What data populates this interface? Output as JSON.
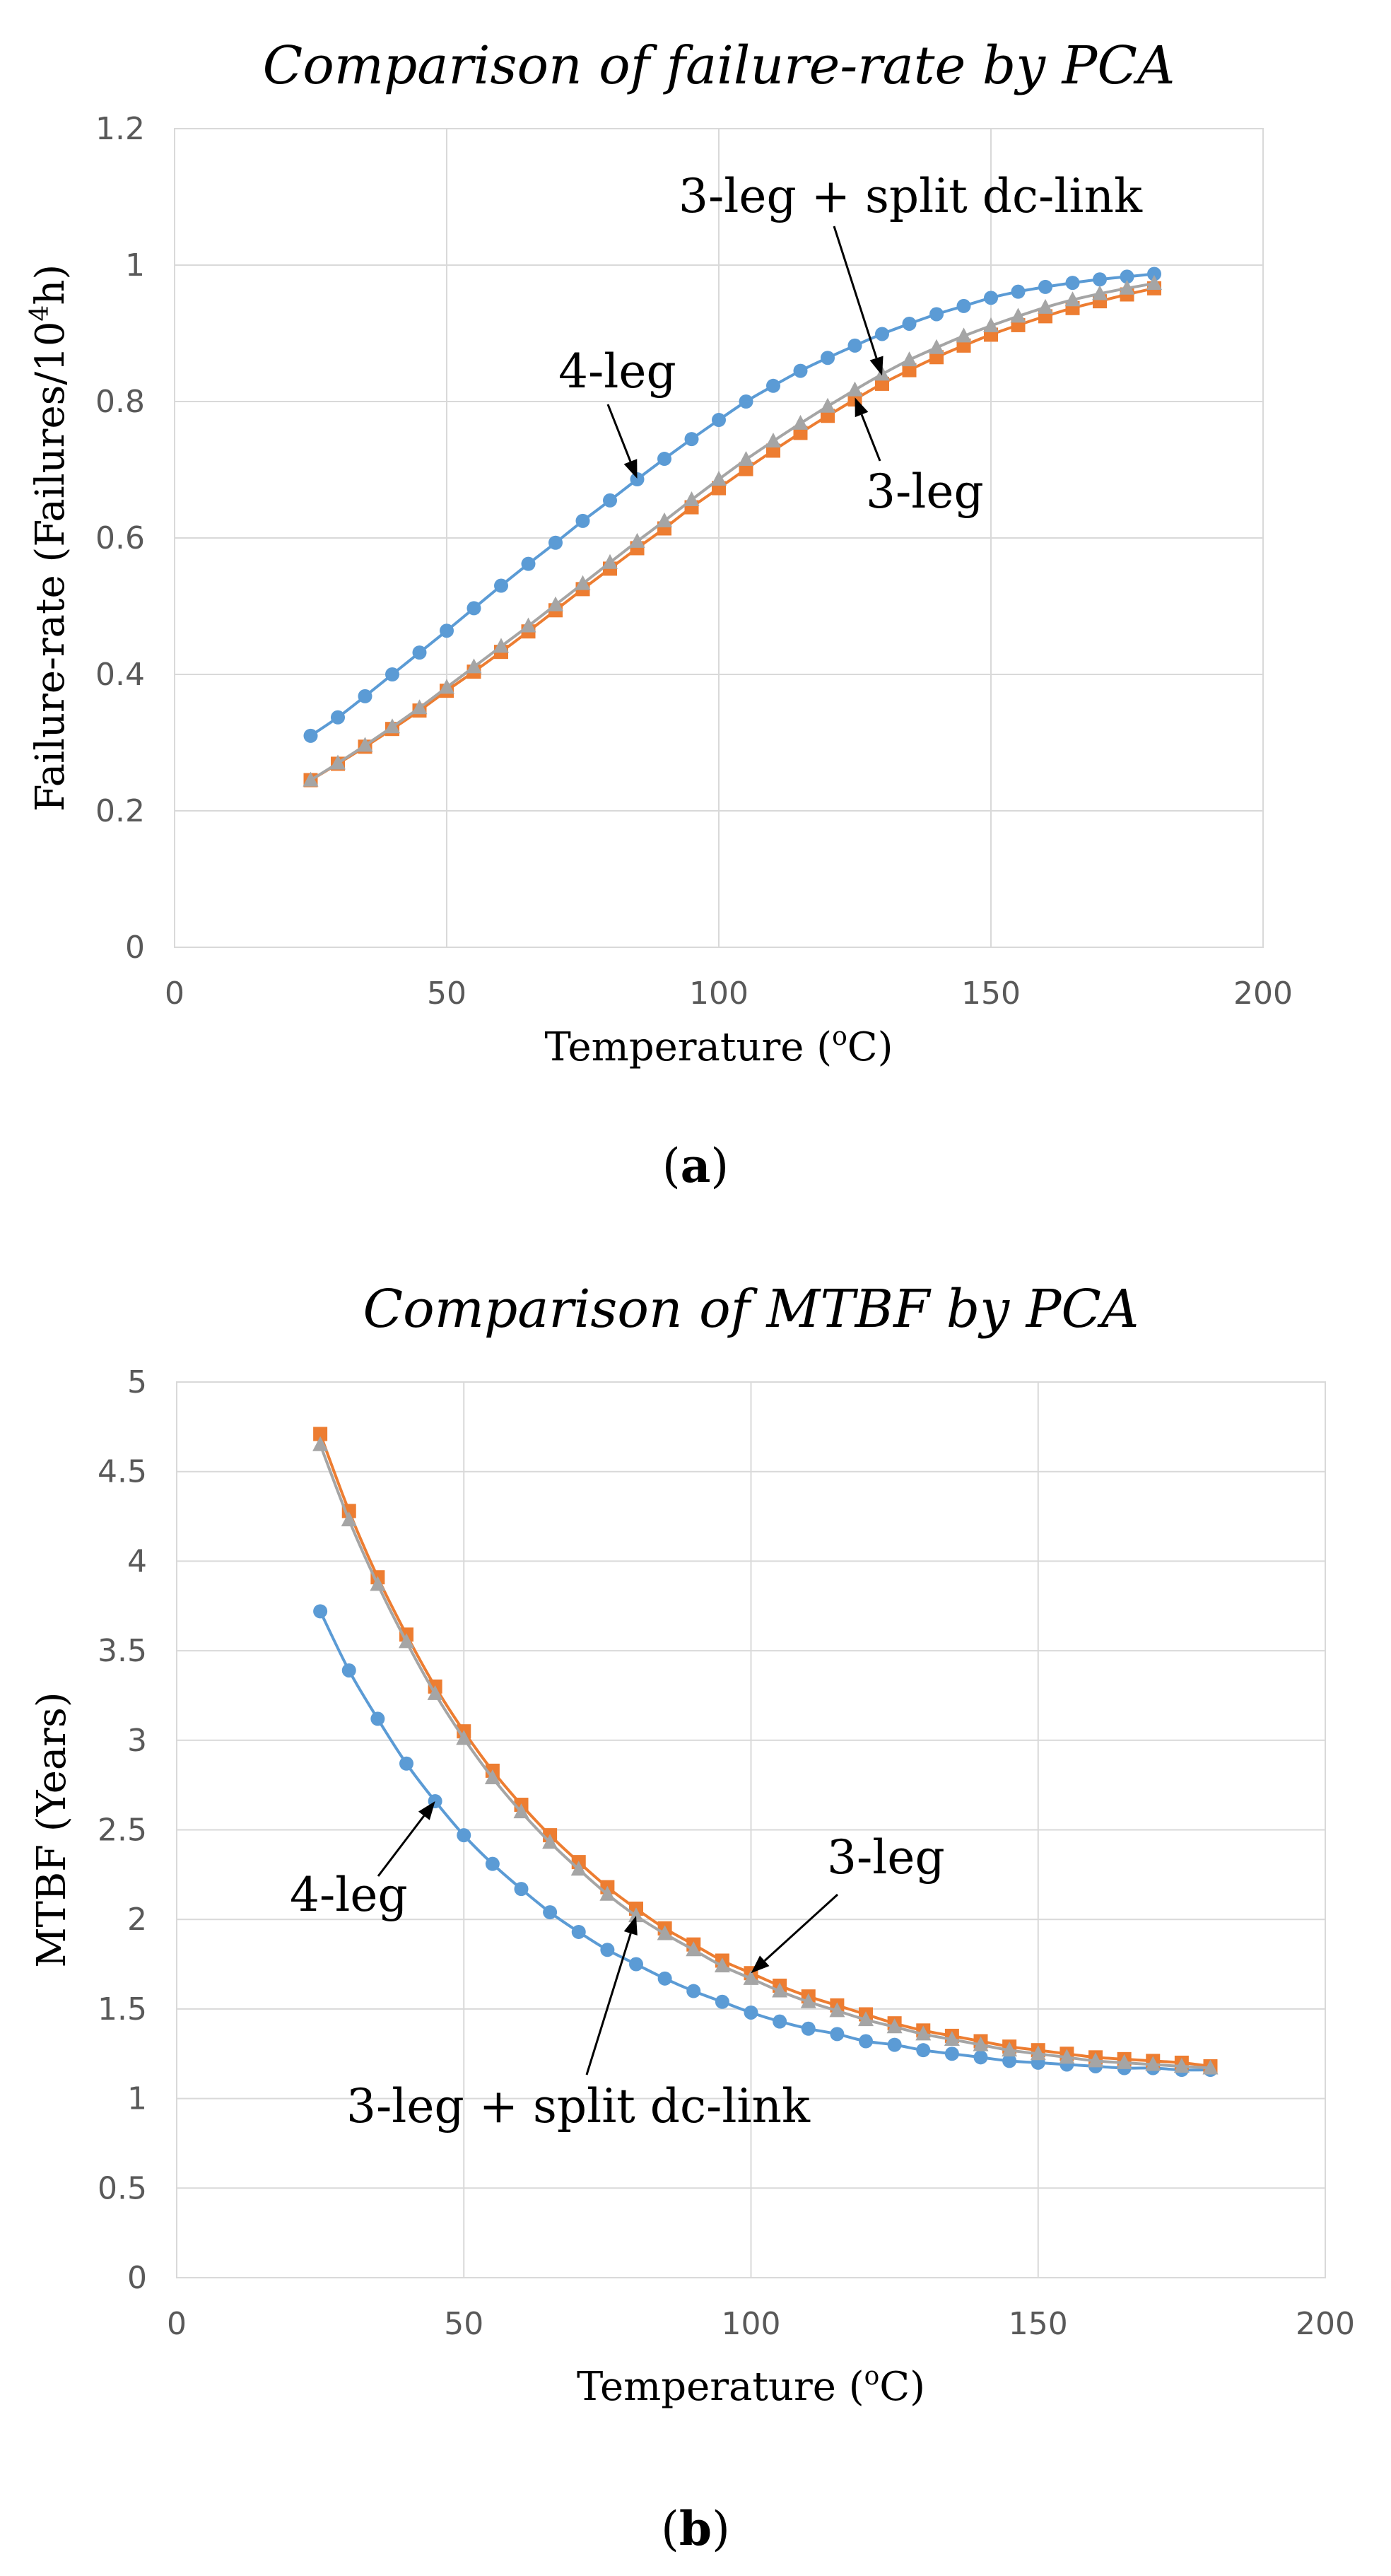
{
  "figure": {
    "panel_a": {
      "label_open": "(",
      "label_letter": "a",
      "label_close": ")"
    },
    "panel_b": {
      "label_open": "(",
      "label_letter": "b",
      "label_close": ")"
    }
  },
  "colors": {
    "four_leg": "#5b9bd5",
    "three_leg": "#ed7d31",
    "three_leg_split": "#a5a5a5",
    "annotation": "#000000"
  },
  "chart_data": [
    {
      "type": "line",
      "title": "Comparison of failure-rate by PCA",
      "xlabel": "Temperature (°C)",
      "xlabel_parts": {
        "pre": "Temperature (",
        "sup": "o",
        "post": "C)"
      },
      "ylabel": "Failure-rate (Failures/10⁴h)",
      "ylabel_parts": {
        "pre": "Failure-rate (Failures/10",
        "sup": "4",
        "post": "h)"
      },
      "xlim": [
        0,
        200
      ],
      "ylim": [
        0,
        1.2
      ],
      "xticks": [
        0,
        50,
        100,
        150,
        200
      ],
      "xtick_labels": [
        "0",
        "50",
        "100",
        "150",
        "200"
      ],
      "yticks": [
        0,
        0.2,
        0.4,
        0.6,
        0.8,
        1.0,
        1.2
      ],
      "ytick_labels": [
        "0",
        "0.2",
        "0.4",
        "0.6",
        "0.8",
        "1",
        "1.2"
      ],
      "grid": true,
      "x": [
        25,
        30,
        35,
        40,
        45,
        50,
        55,
        60,
        65,
        70,
        75,
        80,
        85,
        90,
        95,
        100,
        105,
        110,
        115,
        120,
        125,
        130,
        135,
        140,
        145,
        150,
        155,
        160,
        165,
        170,
        175,
        180
      ],
      "series": [
        {
          "name": "4-leg",
          "marker": "circle",
          "values": [
            0.31,
            0.337,
            0.368,
            0.4,
            0.432,
            0.464,
            0.497,
            0.53,
            0.562,
            0.593,
            0.625,
            0.655,
            0.686,
            0.716,
            0.745,
            0.773,
            0.8,
            0.823,
            0.845,
            0.864,
            0.882,
            0.899,
            0.914,
            0.928,
            0.94,
            0.952,
            0.961,
            0.968,
            0.974,
            0.979,
            0.983,
            0.987
          ]
        },
        {
          "name": "3-leg",
          "marker": "square",
          "values": [
            0.245,
            0.269,
            0.294,
            0.32,
            0.347,
            0.376,
            0.404,
            0.433,
            0.463,
            0.494,
            0.525,
            0.555,
            0.585,
            0.614,
            0.645,
            0.673,
            0.701,
            0.728,
            0.754,
            0.779,
            0.803,
            0.826,
            0.846,
            0.865,
            0.882,
            0.898,
            0.912,
            0.925,
            0.937,
            0.947,
            0.957,
            0.966
          ]
        },
        {
          "name": "3-leg + split dc-link",
          "marker": "triangle",
          "values": [
            0.245,
            0.27,
            0.296,
            0.323,
            0.351,
            0.381,
            0.411,
            0.441,
            0.471,
            0.502,
            0.533,
            0.564,
            0.595,
            0.625,
            0.656,
            0.686,
            0.715,
            0.742,
            0.768,
            0.793,
            0.817,
            0.84,
            0.861,
            0.879,
            0.896,
            0.911,
            0.925,
            0.938,
            0.949,
            0.958,
            0.966,
            0.973
          ]
        }
      ],
      "annotations": [
        {
          "text": "4-leg",
          "points_to": "4-leg",
          "at_x": 85,
          "at_y": 0.687
        },
        {
          "text": "3-leg + split dc-link",
          "points_to": "3-leg + split dc-link",
          "at_x": 130,
          "at_y": 0.838
        },
        {
          "text": "3-leg",
          "points_to": "3-leg",
          "at_x": 125,
          "at_y": 0.806
        }
      ]
    },
    {
      "type": "line",
      "title": "Comparison of MTBF by PCA",
      "xlabel": "Temperature (°C)",
      "xlabel_parts": {
        "pre": "Temperature (",
        "sup": "o",
        "post": "C)"
      },
      "ylabel": "MTBF (Years)",
      "xlim": [
        0,
        200
      ],
      "ylim": [
        0,
        5
      ],
      "xticks": [
        0,
        50,
        100,
        150,
        200
      ],
      "xtick_labels": [
        "0",
        "50",
        "100",
        "150",
        "200"
      ],
      "yticks": [
        0,
        0.5,
        1,
        1.5,
        2,
        2.5,
        3,
        3.5,
        4,
        4.5,
        5
      ],
      "ytick_labels": [
        "0",
        "0.5",
        "1",
        "1.5",
        "2",
        "2.5",
        "3",
        "3.5",
        "4",
        "4.5",
        "5"
      ],
      "grid": true,
      "x": [
        25,
        30,
        35,
        40,
        45,
        50,
        55,
        60,
        65,
        70,
        75,
        80,
        85,
        90,
        95,
        100,
        105,
        110,
        115,
        120,
        125,
        130,
        135,
        140,
        145,
        150,
        155,
        160,
        165,
        170,
        175,
        180
      ],
      "series": [
        {
          "name": "4-leg",
          "marker": "circle",
          "values": [
            3.72,
            3.39,
            3.12,
            2.87,
            2.66,
            2.47,
            2.31,
            2.17,
            2.04,
            1.93,
            1.83,
            1.75,
            1.67,
            1.6,
            1.54,
            1.48,
            1.43,
            1.39,
            1.36,
            1.32,
            1.3,
            1.27,
            1.25,
            1.23,
            1.21,
            1.2,
            1.19,
            1.18,
            1.17,
            1.17,
            1.16,
            1.16
          ]
        },
        {
          "name": "3-leg",
          "marker": "square",
          "values": [
            4.71,
            4.28,
            3.91,
            3.59,
            3.3,
            3.05,
            2.83,
            2.64,
            2.47,
            2.32,
            2.18,
            2.06,
            1.95,
            1.86,
            1.77,
            1.7,
            1.63,
            1.57,
            1.52,
            1.47,
            1.42,
            1.38,
            1.35,
            1.32,
            1.29,
            1.27,
            1.25,
            1.23,
            1.22,
            1.21,
            1.2,
            1.18
          ]
        },
        {
          "name": "3-leg + split dc-link",
          "marker": "triangle",
          "values": [
            4.65,
            4.23,
            3.87,
            3.55,
            3.26,
            3.01,
            2.79,
            2.6,
            2.43,
            2.28,
            2.14,
            2.02,
            1.92,
            1.83,
            1.74,
            1.67,
            1.6,
            1.54,
            1.49,
            1.44,
            1.4,
            1.36,
            1.33,
            1.3,
            1.27,
            1.25,
            1.23,
            1.21,
            1.2,
            1.19,
            1.18,
            1.17
          ]
        }
      ],
      "annotations": [
        {
          "text": "4-leg",
          "points_to": "4-leg",
          "at_x": 45,
          "at_y": 2.66
        },
        {
          "text": "3-leg",
          "points_to": "3-leg",
          "at_x": 100,
          "at_y": 1.7
        },
        {
          "text": "3-leg + split dc-link",
          "points_to": "3-leg + split dc-link",
          "at_x": 80,
          "at_y": 2.02
        }
      ]
    }
  ]
}
